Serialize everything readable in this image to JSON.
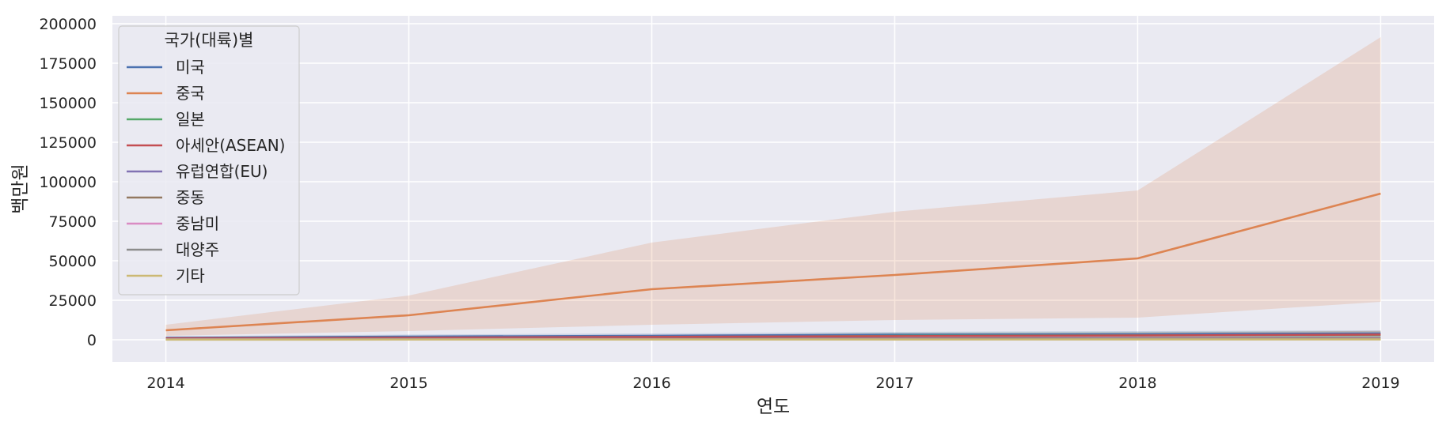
{
  "chart_data": {
    "type": "line",
    "title": "",
    "xlabel": "연도",
    "ylabel": "백만원",
    "x": [
      2014,
      2015,
      2016,
      2017,
      2018,
      2019
    ],
    "xlim": [
      2013.78,
      2019.22
    ],
    "ylim": [
      -14000,
      205000
    ],
    "yticks": [
      0,
      25000,
      50000,
      75000,
      100000,
      125000,
      150000,
      175000,
      200000
    ],
    "grid": true,
    "legend": {
      "title": "국가(대륙)별",
      "position": "top-left"
    },
    "series": [
      {
        "name": "미국",
        "color": "#4c72b0",
        "values": [
          1200,
          2000,
          2500,
          3200,
          3500,
          4000
        ],
        "ci_lower": [
          400,
          800,
          1000,
          1300,
          1500,
          1800
        ],
        "ci_upper": [
          2200,
          3300,
          4000,
          5000,
          5500,
          6000
        ]
      },
      {
        "name": "중국",
        "color": "#dd8452",
        "values": [
          6000,
          15500,
          32000,
          41000,
          51500,
          92500
        ],
        "ci_lower": [
          2500,
          5500,
          9500,
          12500,
          14000,
          24000
        ],
        "ci_upper": [
          9500,
          28000,
          61500,
          81000,
          94500,
          191500
        ]
      },
      {
        "name": "일본",
        "color": "#55a868",
        "values": [
          800,
          1200,
          1500,
          2500,
          2800,
          3000
        ],
        "ci_lower": [
          300,
          500,
          600,
          900,
          1100,
          1200
        ],
        "ci_upper": [
          1500,
          2200,
          2700,
          4500,
          5000,
          5500
        ]
      },
      {
        "name": "아세안(ASEAN)",
        "color": "#c44e52",
        "values": [
          900,
          1300,
          1800,
          2300,
          2700,
          3300
        ],
        "ci_lower": [
          300,
          500,
          700,
          900,
          1000,
          1200
        ],
        "ci_upper": [
          1600,
          2300,
          3200,
          4000,
          4600,
          5600
        ]
      },
      {
        "name": "유럽연합(EU)",
        "color": "#8172b3",
        "values": [
          400,
          500,
          600,
          800,
          900,
          1000
        ],
        "ci_lower": [
          100,
          150,
          200,
          250,
          300,
          350
        ],
        "ci_upper": [
          800,
          1000,
          1200,
          1600,
          1800,
          2000
        ]
      },
      {
        "name": "중동",
        "color": "#937860",
        "values": [
          300,
          400,
          500,
          600,
          700,
          800
        ],
        "ci_lower": [
          100,
          100,
          150,
          200,
          200,
          250
        ],
        "ci_upper": [
          600,
          800,
          1000,
          1200,
          1400,
          1600
        ]
      },
      {
        "name": "중남미",
        "color": "#da8bc3",
        "values": [
          200,
          250,
          300,
          350,
          400,
          450
        ],
        "ci_lower": [
          50,
          60,
          80,
          100,
          120,
          140
        ],
        "ci_upper": [
          400,
          500,
          600,
          700,
          800,
          900
        ]
      },
      {
        "name": "대양주",
        "color": "#8c8c8c",
        "values": [
          150,
          200,
          250,
          300,
          350,
          400
        ],
        "ci_lower": [
          50,
          60,
          80,
          100,
          110,
          120
        ],
        "ci_upper": [
          300,
          400,
          500,
          600,
          700,
          800
        ]
      },
      {
        "name": "기타",
        "color": "#ccb974",
        "values": [
          100,
          120,
          150,
          180,
          200,
          220
        ],
        "ci_lower": [
          20,
          30,
          40,
          50,
          60,
          70
        ],
        "ci_upper": [
          200,
          250,
          300,
          350,
          400,
          450
        ]
      }
    ]
  }
}
